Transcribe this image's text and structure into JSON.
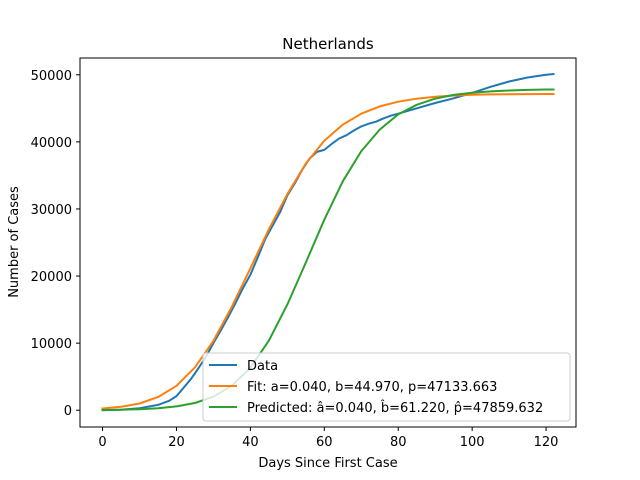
{
  "chart_data": {
    "type": "line",
    "title": "Netherlands",
    "xlabel": "Days Since First Case",
    "ylabel": "Number of Cases",
    "xlim": [
      -6.1,
      128.1
    ],
    "ylim": [
      -2500,
      52500
    ],
    "xticks": [
      0,
      20,
      40,
      60,
      80,
      100,
      120
    ],
    "yticks": [
      0,
      10000,
      20000,
      30000,
      40000,
      50000
    ],
    "x_tick_labels": [
      "0",
      "20",
      "40",
      "60",
      "80",
      "100",
      "120"
    ],
    "y_tick_labels": [
      "0",
      "10000",
      "20000",
      "30000",
      "40000",
      "50000"
    ],
    "grid": false,
    "legend_position": "lower-right",
    "series": [
      {
        "name": "Data",
        "color": "#1f77b4",
        "x": [
          0,
          5,
          10,
          15,
          18,
          20,
          22,
          24,
          26,
          28,
          30,
          32,
          34,
          36,
          38,
          40,
          42,
          44,
          46,
          48,
          50,
          52,
          54,
          56,
          58,
          60,
          62,
          64,
          66,
          68,
          70,
          72,
          74,
          76,
          78,
          80,
          85,
          90,
          95,
          100,
          105,
          110,
          115,
          120,
          122
        ],
        "y": [
          0,
          80,
          300,
          800,
          1400,
          2100,
          3400,
          4700,
          6300,
          8000,
          10000,
          11900,
          13900,
          16000,
          18200,
          20200,
          22800,
          25500,
          27500,
          29500,
          32000,
          33800,
          35800,
          37500,
          38500,
          38800,
          39700,
          40500,
          41000,
          41700,
          42300,
          42700,
          43000,
          43500,
          43900,
          44200,
          45000,
          45800,
          46500,
          47300,
          48200,
          49000,
          49600,
          50000,
          50100
        ]
      },
      {
        "name": "Fit: a=0.040, b=44.970, p=47133.663",
        "color": "#ff7f0e",
        "x": [
          0,
          5,
          10,
          15,
          20,
          25,
          30,
          35,
          40,
          45,
          50,
          55,
          60,
          65,
          70,
          75,
          80,
          85,
          90,
          95,
          100,
          105,
          110,
          115,
          120,
          122
        ],
        "y": [
          254,
          508,
          1010,
          1950,
          3640,
          6380,
          10340,
          15440,
          21150,
          26980,
          32200,
          36780,
          40180,
          42570,
          44200,
          45290,
          45990,
          46440,
          46730,
          46900,
          47020,
          47080,
          47100,
          47120,
          47130,
          47130
        ]
      },
      {
        "name": "Predicted: â=0.040, b̂=61.220, p̂=47859.632",
        "color": "#2ca02c",
        "x": [
          0,
          5,
          10,
          15,
          20,
          25,
          30,
          35,
          40,
          45,
          50,
          55,
          60,
          65,
          70,
          75,
          80,
          85,
          90,
          95,
          100,
          105,
          110,
          115,
          120,
          122
        ],
        "y": [
          41,
          80,
          155,
          300,
          570,
          1080,
          2010,
          3650,
          6340,
          10380,
          15750,
          22010,
          28400,
          34120,
          38620,
          41830,
          44100,
          45520,
          46450,
          47000,
          47320,
          47520,
          47660,
          47740,
          47800,
          47810
        ]
      }
    ]
  }
}
